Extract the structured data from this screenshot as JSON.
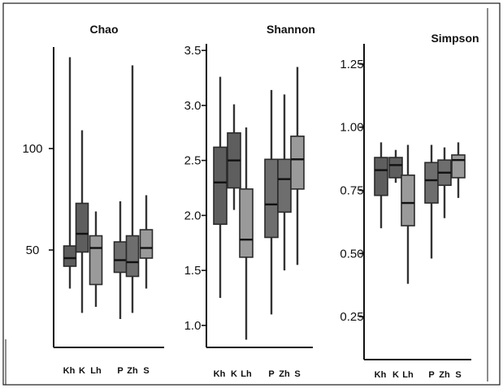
{
  "chart_data": [
    {
      "type": "box",
      "title": "Chao",
      "categories": [
        "Kh",
        "K",
        "Lh",
        "P",
        "Zh",
        "S"
      ],
      "yticks": [
        50,
        100
      ],
      "ylim": [
        2,
        150
      ],
      "boxes": [
        {
          "category": "Kh",
          "min": 31,
          "q1": 42,
          "median": 46,
          "q3": 52,
          "max": 61,
          "color": "#5e5e5e"
        },
        {
          "category": "K",
          "min": 19,
          "q1": 49,
          "median": 58,
          "q3": 73,
          "max": 109,
          "color": "#5e5e5e"
        },
        {
          "category": "Lh",
          "min": 22,
          "q1": 33,
          "median": 51,
          "q3": 57,
          "max": 69,
          "color": "#9a9a9a"
        },
        {
          "category": "P",
          "min": 16,
          "q1": 39,
          "median": 45,
          "q3": 54,
          "max": 74,
          "color": "#6e6e6e"
        },
        {
          "category": "Zh",
          "min": 19,
          "q1": 37,
          "median": 44,
          "q3": 57,
          "max": 141,
          "color": "#6e6e6e"
        },
        {
          "category": "S",
          "min": 31,
          "q1": 46,
          "median": 51,
          "q3": 60,
          "max": 77,
          "color": "#9a9a9a"
        }
      ],
      "extra_line": {
        "category": "Kh",
        "value": 145
      }
    },
    {
      "type": "box",
      "title": "Shannon",
      "categories": [
        "Kh",
        "K",
        "Lh",
        "P",
        "Zh",
        "S"
      ],
      "yticks": [
        "1.0",
        "1.5",
        "2.0",
        "2.5",
        "3.0",
        "3.5"
      ],
      "ylim": [
        0.8,
        3.56
      ],
      "boxes": [
        {
          "category": "Kh",
          "min": 1.25,
          "q1": 1.92,
          "median": 2.3,
          "q3": 2.62,
          "max": 3.26,
          "color": "#5e5e5e"
        },
        {
          "category": "K",
          "min": 2.05,
          "q1": 2.25,
          "median": 2.5,
          "q3": 2.75,
          "max": 3.01,
          "color": "#5e5e5e"
        },
        {
          "category": "Lh",
          "min": 0.87,
          "q1": 1.62,
          "median": 1.78,
          "q3": 2.24,
          "max": 2.8,
          "color": "#9a9a9a"
        },
        {
          "category": "P",
          "min": 1.1,
          "q1": 1.8,
          "median": 2.1,
          "q3": 2.51,
          "max": 3.14,
          "color": "#6e6e6e"
        },
        {
          "category": "Zh",
          "min": 1.5,
          "q1": 2.03,
          "median": 2.33,
          "q3": 2.51,
          "max": 3.1,
          "color": "#6e6e6e"
        },
        {
          "category": "S",
          "min": 1.55,
          "q1": 2.24,
          "median": 2.51,
          "q3": 2.72,
          "max": 3.35,
          "color": "#9a9a9a"
        }
      ]
    },
    {
      "type": "box",
      "title": "Simpson",
      "categories": [
        "Kh",
        "K",
        "Lh",
        "P",
        "Zh",
        "S"
      ],
      "yticks": [
        "0.25",
        "0.50",
        "0.75",
        "1.00",
        "1.25"
      ],
      "ylim": [
        0.08,
        1.33
      ],
      "boxes": [
        {
          "category": "Kh",
          "min": 0.6,
          "q1": 0.73,
          "median": 0.83,
          "q3": 0.88,
          "max": 0.94,
          "color": "#5e5e5e"
        },
        {
          "category": "K",
          "min": 0.78,
          "q1": 0.8,
          "median": 0.85,
          "q3": 0.88,
          "max": 0.91,
          "color": "#5e5e5e"
        },
        {
          "category": "Lh",
          "min": 0.38,
          "q1": 0.61,
          "median": 0.7,
          "q3": 0.81,
          "max": 0.93,
          "color": "#9a9a9a"
        },
        {
          "category": "P",
          "min": 0.48,
          "q1": 0.7,
          "median": 0.79,
          "q3": 0.86,
          "max": 0.93,
          "color": "#6e6e6e"
        },
        {
          "category": "Zh",
          "min": 0.64,
          "q1": 0.77,
          "median": 0.82,
          "q3": 0.87,
          "max": 0.92,
          "color": "#6e6e6e"
        },
        {
          "category": "S",
          "min": 0.72,
          "q1": 0.8,
          "median": 0.87,
          "q3": 0.89,
          "max": 0.94,
          "color": "#9a9a9a"
        }
      ]
    }
  ]
}
